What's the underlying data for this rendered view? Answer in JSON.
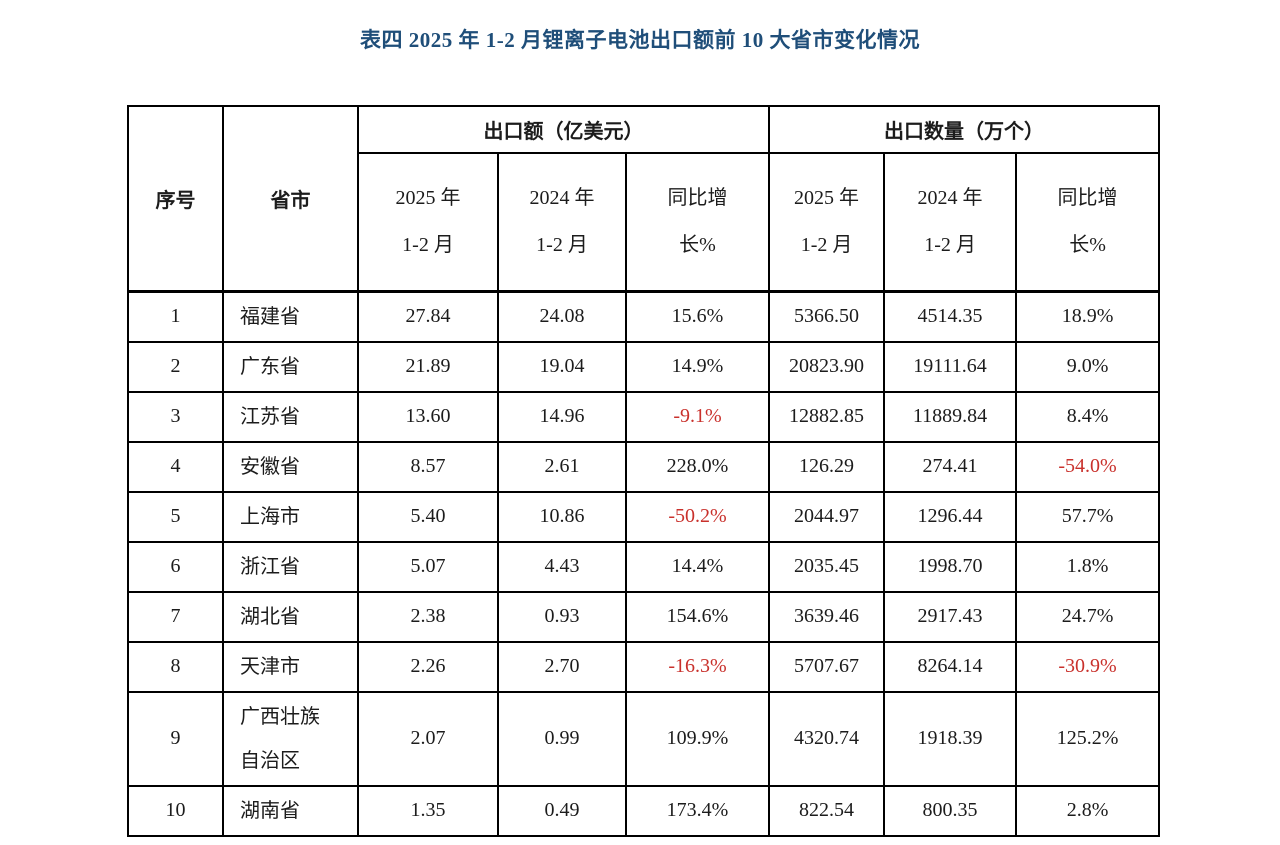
{
  "page": {
    "title": "表四 2025 年 1-2 月锂离子电池出口额前 10 大省市变化情况"
  },
  "colors": {
    "title_blue": "#1f4e79",
    "negative_red": "#c9312c",
    "text_black": "#1c1c1c",
    "border_black": "#000000"
  },
  "table": {
    "header": {
      "col_index": "序号",
      "col_province": "省市",
      "group_export_value": "出口额（亿美元）",
      "group_export_quantity": "出口数量（万个）",
      "sub_2025": "2025 年\n1-2 月",
      "sub_2024": "2024 年\n1-2 月",
      "sub_yoy": "同比增\n长%"
    },
    "rows": [
      {
        "no": "1",
        "province": "福建省",
        "exp2025": "27.84",
        "exp2024": "24.08",
        "expYoy": "15.6%",
        "qty2025": "5366.50",
        "qty2024": "4514.35",
        "qtyYoy": "18.9%"
      },
      {
        "no": "2",
        "province": "广东省",
        "exp2025": "21.89",
        "exp2024": "19.04",
        "expYoy": "14.9%",
        "qty2025": "20823.90",
        "qty2024": "19111.64",
        "qtyYoy": "9.0%"
      },
      {
        "no": "3",
        "province": "江苏省",
        "exp2025": "13.60",
        "exp2024": "14.96",
        "expYoy": "-9.1%",
        "qty2025": "12882.85",
        "qty2024": "11889.84",
        "qtyYoy": "8.4%"
      },
      {
        "no": "4",
        "province": "安徽省",
        "exp2025": "8.57",
        "exp2024": "2.61",
        "expYoy": "228.0%",
        "qty2025": "126.29",
        "qty2024": "274.41",
        "qtyYoy": "-54.0%"
      },
      {
        "no": "5",
        "province": "上海市",
        "exp2025": "5.40",
        "exp2024": "10.86",
        "expYoy": "-50.2%",
        "qty2025": "2044.97",
        "qty2024": "1296.44",
        "qtyYoy": "57.7%"
      },
      {
        "no": "6",
        "province": "浙江省",
        "exp2025": "5.07",
        "exp2024": "4.43",
        "expYoy": "14.4%",
        "qty2025": "2035.45",
        "qty2024": "1998.70",
        "qtyYoy": "1.8%"
      },
      {
        "no": "7",
        "province": "湖北省",
        "exp2025": "2.38",
        "exp2024": "0.93",
        "expYoy": "154.6%",
        "qty2025": "3639.46",
        "qty2024": "2917.43",
        "qtyYoy": "24.7%"
      },
      {
        "no": "8",
        "province": "天津市",
        "exp2025": "2.26",
        "exp2024": "2.70",
        "expYoy": "-16.3%",
        "qty2025": "5707.67",
        "qty2024": "8264.14",
        "qtyYoy": "-30.9%"
      },
      {
        "no": "9",
        "province": "广西壮族\n自治区",
        "exp2025": "2.07",
        "exp2024": "0.99",
        "expYoy": "109.9%",
        "qty2025": "4320.74",
        "qty2024": "1918.39",
        "qtyYoy": "125.2%"
      },
      {
        "no": "10",
        "province": "湖南省",
        "exp2025": "1.35",
        "exp2024": "0.49",
        "expYoy": "173.4%",
        "qty2025": "822.54",
        "qty2024": "800.35",
        "qtyYoy": "2.8%"
      }
    ]
  }
}
